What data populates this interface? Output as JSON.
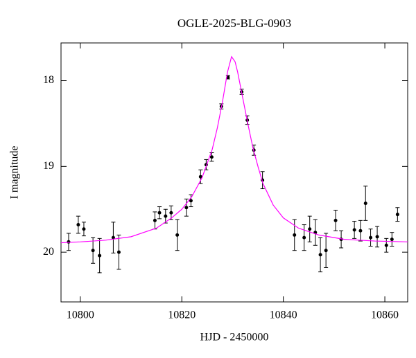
{
  "chart_data": {
    "type": "scatter",
    "title": "OGLE-2025-BLG-0903",
    "xlabel": "HJD - 2450000",
    "ylabel": "I magnitude",
    "xlim": [
      10796.2,
      10864.5
    ],
    "ylim": [
      20.58,
      17.56
    ],
    "xticks": [
      10800,
      10820,
      10840,
      10860
    ],
    "yticks": [
      18,
      19,
      20
    ],
    "series": [
      {
        "kind": "errorbar",
        "color": "#000000",
        "x": [
          10797.7,
          10799.6,
          10800.7,
          10802.5,
          10803.8,
          10806.5,
          10807.6,
          10814.7,
          10815.6,
          10816.8,
          10817.9,
          10819.1,
          10820.9,
          10821.8,
          10823.7,
          10824.8,
          10825.9,
          10827.8,
          10829.1,
          10831.8,
          10832.9,
          10834.2,
          10835.9,
          10842.2,
          10844.1,
          10845.2,
          10846.3,
          10847.3,
          10848.4,
          10850.3,
          10851.4,
          10854.0,
          10855.2,
          10856.2,
          10857.2,
          10858.5,
          10860.3,
          10861.4,
          10862.5
        ],
        "values": [
          19.88,
          19.68,
          19.73,
          19.98,
          20.04,
          19.83,
          20.0,
          19.63,
          19.54,
          19.58,
          19.54,
          19.8,
          19.48,
          19.4,
          19.12,
          18.98,
          18.89,
          18.3,
          17.96,
          18.13,
          18.46,
          18.81,
          19.16,
          19.8,
          19.83,
          19.73,
          19.77,
          20.03,
          19.98,
          19.63,
          19.85,
          19.74,
          19.75,
          19.43,
          19.83,
          19.82,
          19.92,
          19.85,
          19.56
        ],
        "errors": [
          0.1,
          0.1,
          0.08,
          0.15,
          0.2,
          0.18,
          0.2,
          0.1,
          0.07,
          0.08,
          0.08,
          0.18,
          0.1,
          0.07,
          0.08,
          0.06,
          0.05,
          0.03,
          0.02,
          0.03,
          0.05,
          0.06,
          0.1,
          0.18,
          0.15,
          0.15,
          0.15,
          0.2,
          0.2,
          0.12,
          0.1,
          0.1,
          0.12,
          0.2,
          0.1,
          0.12,
          0.08,
          0.08,
          0.08
        ]
      },
      {
        "kind": "line",
        "color": "#ff00ff",
        "x": [
          10796.2,
          10800,
          10805,
          10810,
          10815,
          10818,
          10820,
          10822,
          10824,
          10826,
          10827,
          10828,
          10829,
          10829.8,
          10830.5,
          10831,
          10832,
          10833,
          10834,
          10835,
          10836,
          10838,
          10840,
          10843,
          10847,
          10852,
          10858,
          10864.5
        ],
        "values": [
          19.89,
          19.88,
          19.86,
          19.82,
          19.72,
          19.6,
          19.5,
          19.35,
          19.13,
          18.8,
          18.55,
          18.25,
          17.9,
          17.72,
          17.78,
          17.9,
          18.2,
          18.5,
          18.78,
          19.0,
          19.2,
          19.45,
          19.6,
          19.72,
          19.8,
          19.85,
          19.87,
          19.88
        ]
      }
    ]
  }
}
